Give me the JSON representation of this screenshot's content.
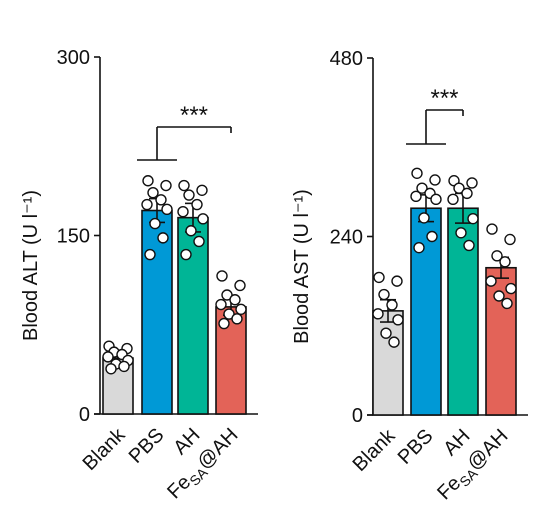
{
  "chart_data": [
    {
      "type": "bar",
      "ylabel": "Blood ALT (U l⁻¹)",
      "ylim": [
        0,
        300
      ],
      "yticks": [
        "0",
        "150",
        "300"
      ],
      "categories": [
        "Blank",
        "PBS",
        "AH",
        "Fe_SA@AH"
      ],
      "category_labels": [
        {
          "main": "Blank",
          "sub": "",
          "rest": ""
        },
        {
          "main": "PBS",
          "sub": "",
          "rest": ""
        },
        {
          "main": "AH",
          "sub": "",
          "rest": ""
        },
        {
          "main": "Fe",
          "sub": "SA",
          "rest": "@AH"
        }
      ],
      "colors": [
        "#d9d9d9",
        "#0099d6",
        "#00b596",
        "#e36358"
      ],
      "values": [
        47,
        171,
        165,
        90
      ],
      "errors": [
        5,
        10,
        12,
        7
      ],
      "points": [
        [
          57,
          55,
          52,
          50,
          48,
          45,
          42,
          40,
          38
        ],
        [
          196,
          192,
          186,
          180,
          176,
          172,
          160,
          148,
          134
        ],
        [
          192,
          188,
          184,
          176,
          170,
          164,
          154,
          145,
          134
        ],
        [
          116,
          108,
          100,
          96,
          92,
          88,
          84,
          80,
          76
        ]
      ],
      "significance": {
        "text": "***",
        "from": 1,
        "to": 3
      }
    },
    {
      "type": "bar",
      "ylabel": "Blood AST (U l⁻¹)",
      "ylim": [
        0,
        480
      ],
      "yticks": [
        "0",
        "240",
        "480"
      ],
      "categories": [
        "Blank",
        "PBS",
        "AH",
        "Fe_SA@AH"
      ],
      "category_labels": [
        {
          "main": "Blank",
          "sub": "",
          "rest": ""
        },
        {
          "main": "PBS",
          "sub": "",
          "rest": ""
        },
        {
          "main": "AH",
          "sub": "",
          "rest": ""
        },
        {
          "main": "Fe",
          "sub": "SA",
          "rest": "@AH"
        }
      ],
      "colors": [
        "#d9d9d9",
        "#0099d6",
        "#00b596",
        "#e36358"
      ],
      "values": [
        140,
        278,
        278,
        198
      ],
      "errors": [
        15,
        18,
        20,
        14
      ],
      "points": [
        [
          185,
          180,
          162,
          148,
          136,
          128,
          110,
          98
        ],
        [
          325,
          316,
          305,
          298,
          294,
          290,
          265,
          240,
          225
        ],
        [
          315,
          312,
          305,
          298,
          290,
          264,
          245,
          228
        ],
        [
          250,
          236,
          214,
          206,
          180,
          170,
          160,
          150
        ]
      ],
      "significance": {
        "text": "***",
        "from": 1,
        "to": 2
      }
    }
  ]
}
